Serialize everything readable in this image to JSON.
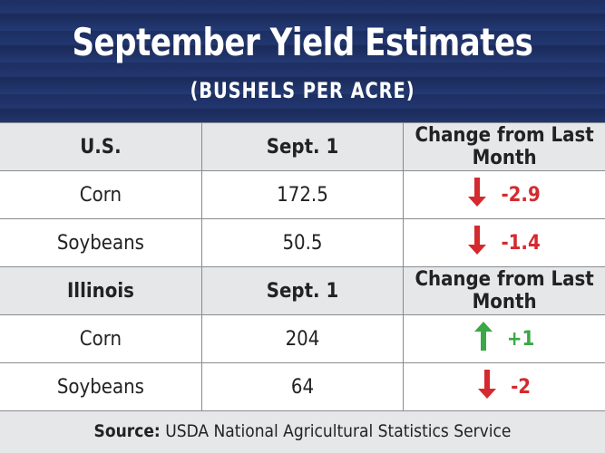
{
  "title": "September Yield Estimates",
  "subtitle": "(BUSHELS PER ACRE)",
  "colors": {
    "banner": "#1f3165",
    "header_row": "#e6e7e9",
    "decrease": "#d42a2f",
    "increase": "#3aa845"
  },
  "chart_data": {
    "type": "table",
    "sections": [
      {
        "columns": [
          "U.S.",
          "Sept. 1",
          "Change from Last Month"
        ],
        "rows": [
          {
            "crop": "Corn",
            "value": "172.5",
            "change": "-2.9",
            "direction": "down"
          },
          {
            "crop": "Soybeans",
            "value": "50.5",
            "change": "-1.4",
            "direction": "down"
          }
        ]
      },
      {
        "columns": [
          "Illinois",
          "Sept. 1",
          "Change from Last Month"
        ],
        "rows": [
          {
            "crop": "Corn",
            "value": "204",
            "change": "+1",
            "direction": "up"
          },
          {
            "crop": "Soybeans",
            "value": "64",
            "change": "-2",
            "direction": "down"
          }
        ]
      }
    ]
  },
  "footer": {
    "label": "Source:",
    "text": " USDA National Agricultural Statistics Service"
  }
}
